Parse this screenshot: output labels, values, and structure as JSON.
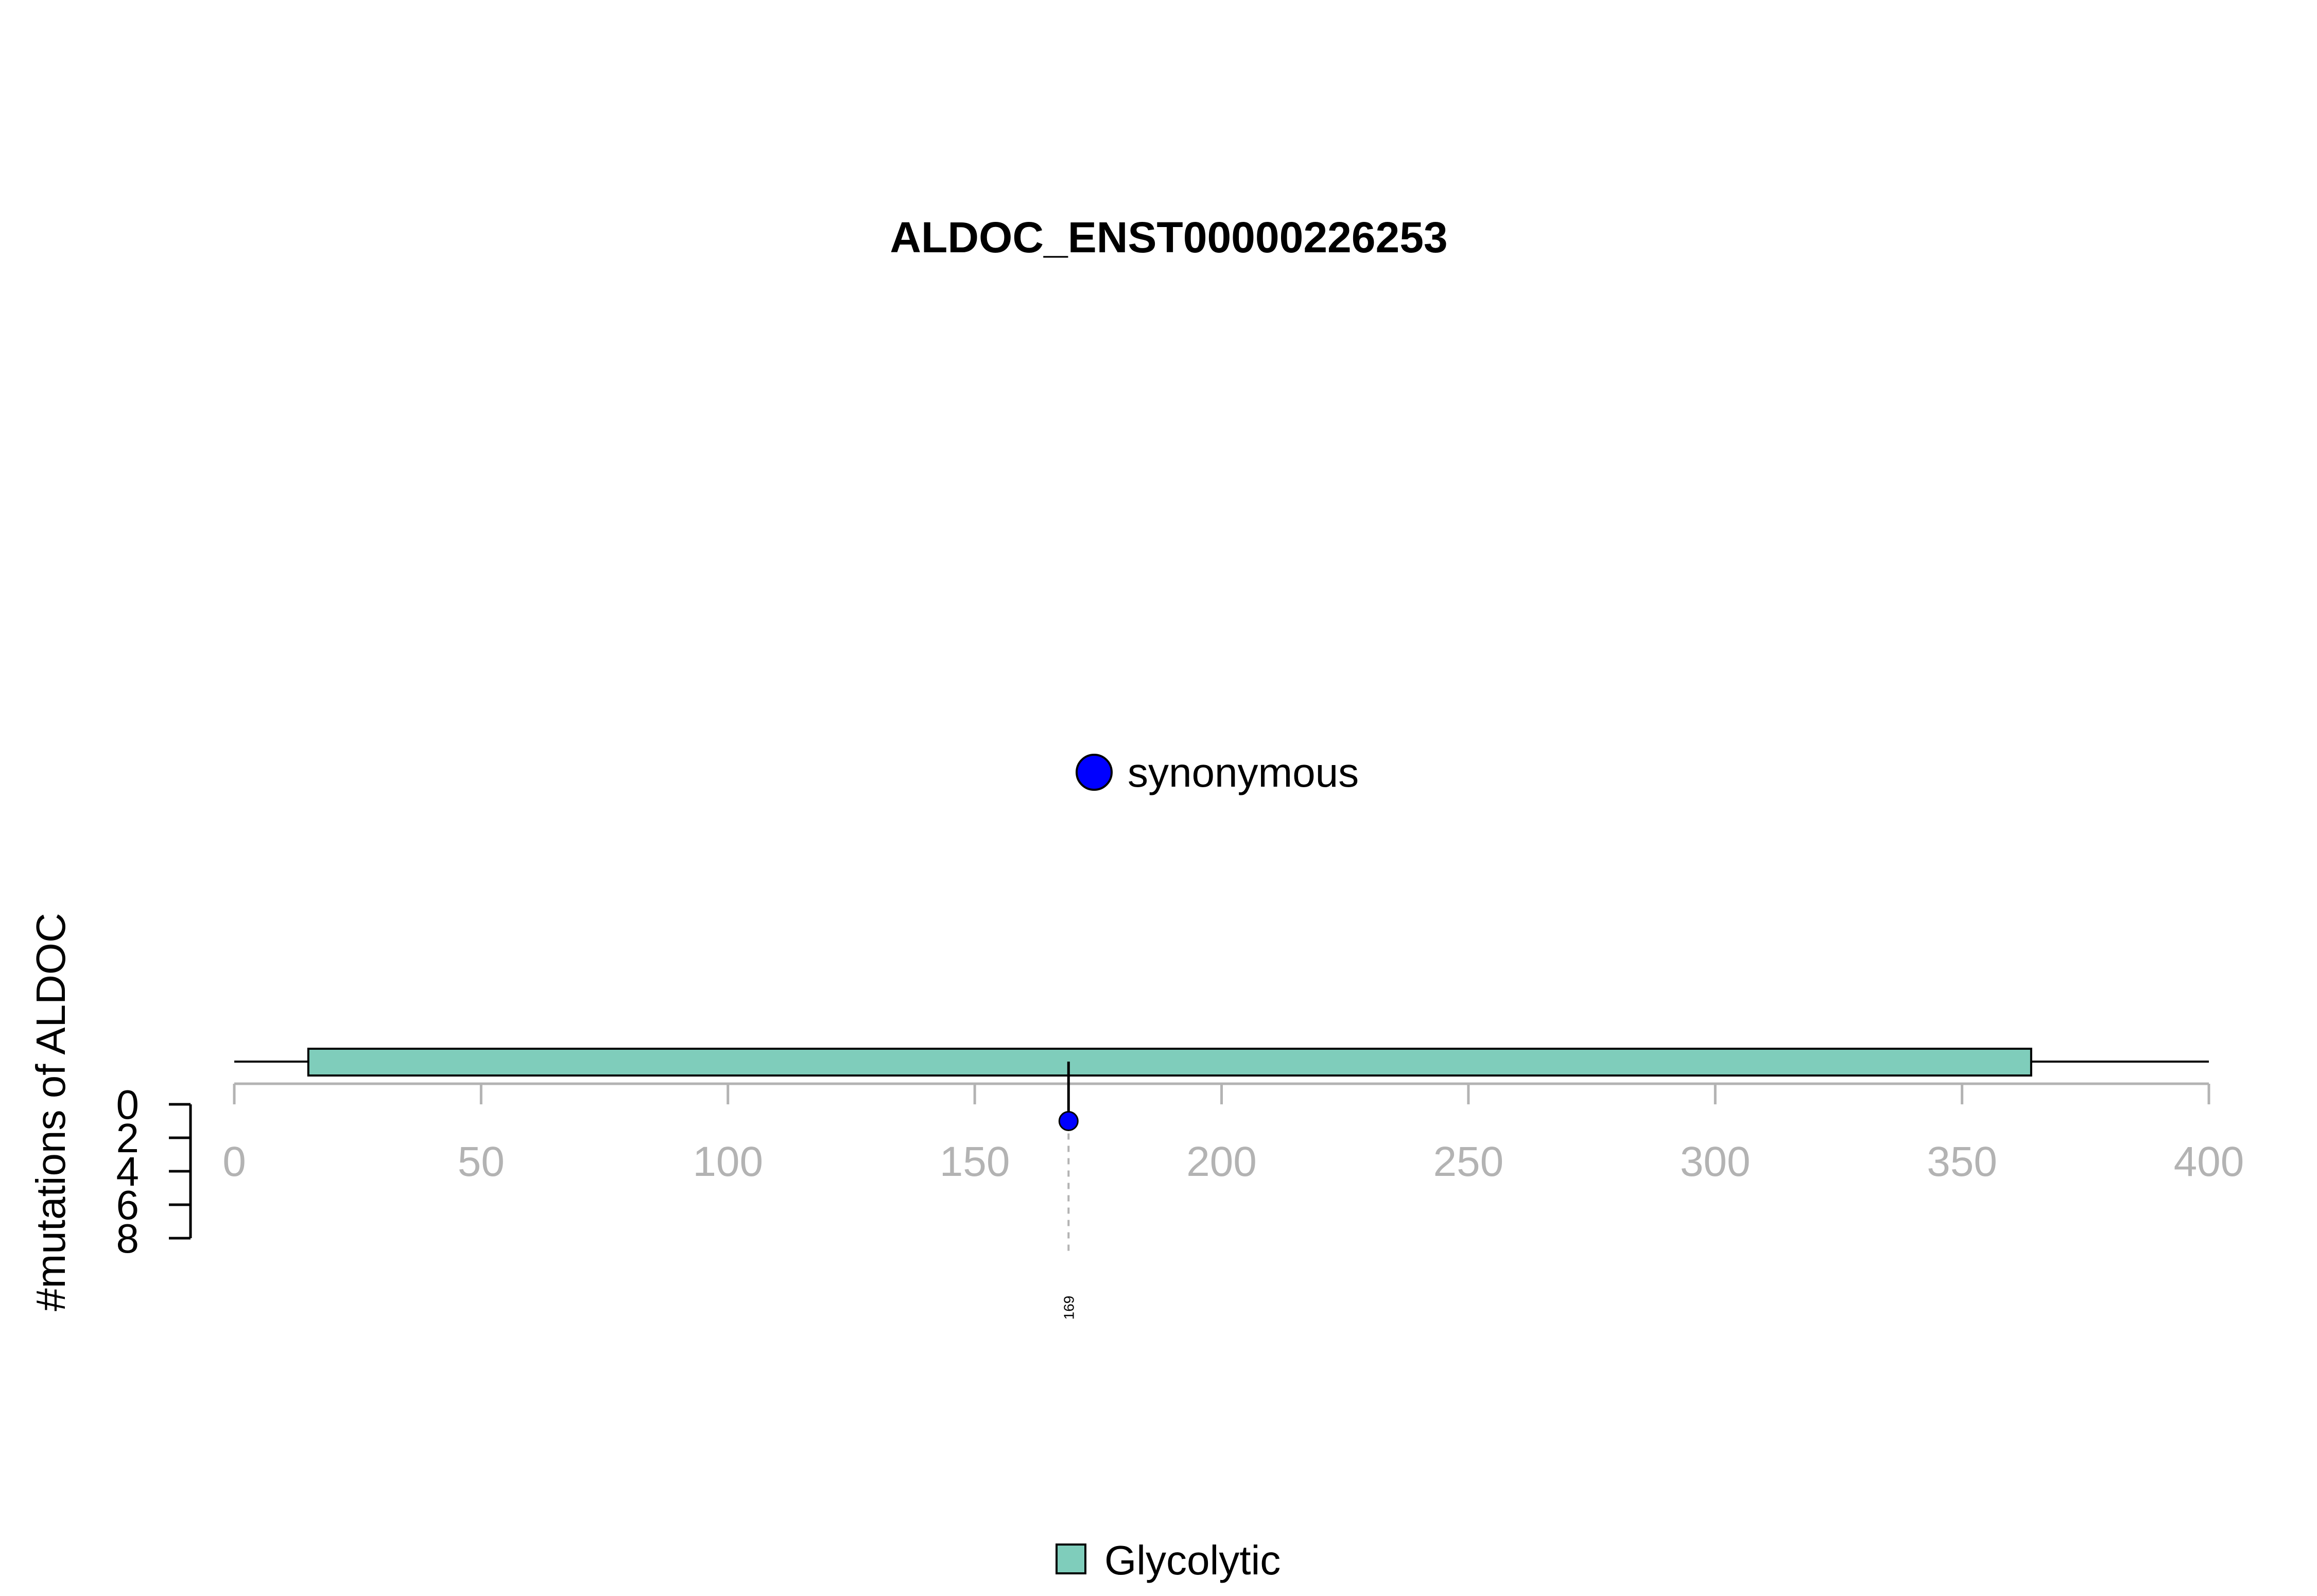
{
  "chart_data": {
    "type": "lollipop",
    "title": "ALDOC_ENST00000226253",
    "ylabel": "#mutations of ALDOC",
    "xlim": [
      0,
      400
    ],
    "x_ticks": [
      0,
      50,
      100,
      150,
      200,
      250,
      300,
      350,
      400
    ],
    "ylim": [
      0,
      8
    ],
    "y_ticks": [
      0,
      2,
      4,
      6,
      8
    ],
    "protein_length": 400,
    "domains": [
      {
        "name": "Glycolytic",
        "start": 15,
        "end": 364,
        "color": "#7fcdbb"
      }
    ],
    "mutations": [
      {
        "position": 169,
        "count": 1,
        "type": "synonymous",
        "label": "169",
        "color": "#0000ff"
      }
    ],
    "mutation_legend": [
      {
        "label": "synonymous",
        "color": "#0000ff"
      }
    ],
    "domain_legend": [
      {
        "label": "Glycolytic",
        "color": "#7fcdbb"
      }
    ],
    "axis_color": "#b3b3b3",
    "grid": false
  }
}
